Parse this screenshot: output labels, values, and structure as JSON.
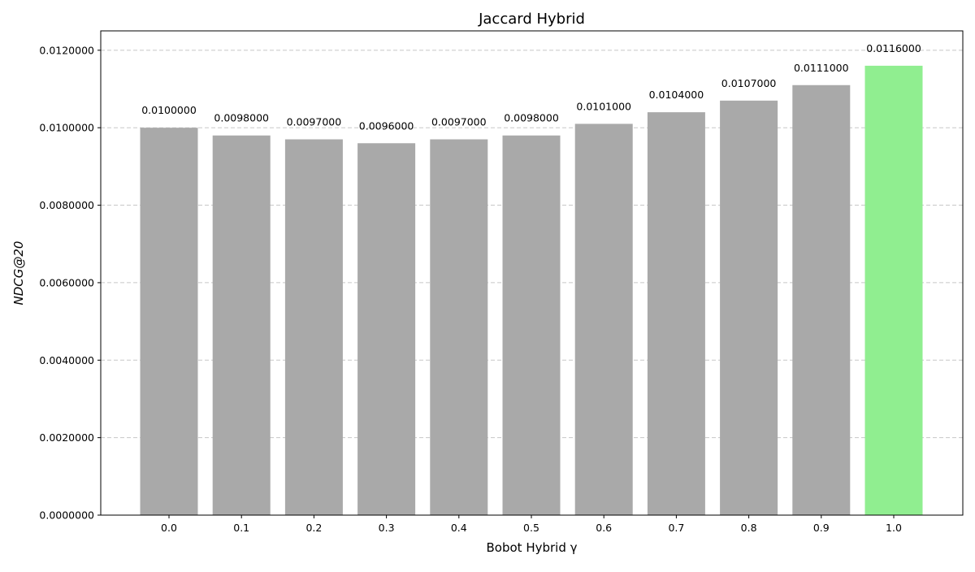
{
  "chart_data": {
    "type": "bar",
    "title": "Jaccard Hybrid",
    "xlabel": "Bobot Hybrid γ",
    "ylabel": "NDCG@20",
    "categories": [
      "0.0",
      "0.1",
      "0.2",
      "0.3",
      "0.4",
      "0.5",
      "0.6",
      "0.7",
      "0.8",
      "0.9",
      "1.0"
    ],
    "values": [
      0.01,
      0.0098,
      0.0097,
      0.0096,
      0.0097,
      0.0098,
      0.0101,
      0.0104,
      0.0107,
      0.0111,
      0.0116
    ],
    "value_labels": [
      "0.0100000",
      "0.0098000",
      "0.0097000",
      "0.0096000",
      "0.0097000",
      "0.0098000",
      "0.0101000",
      "0.0104000",
      "0.0107000",
      "0.0111000",
      "0.0116000"
    ],
    "ylim": [
      0,
      0.0125
    ],
    "yticks": [
      0,
      0.002,
      0.004,
      0.006,
      0.008,
      0.01,
      0.012
    ],
    "ytick_labels": [
      "0.0000000",
      "0.0020000",
      "0.0040000",
      "0.0060000",
      "0.0080000",
      "0.0100000",
      "0.0120000"
    ],
    "grid": "y-dashed",
    "colors": {
      "bar_default": "#a9a9a9",
      "bar_highlight": "#90ee90"
    },
    "highlight_index": 10
  }
}
